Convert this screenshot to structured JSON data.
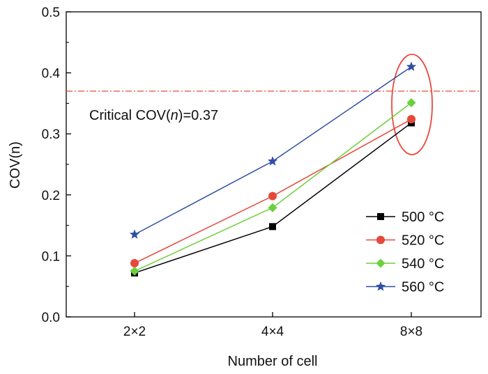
{
  "chart_data": {
    "type": "line",
    "xlabel": "Number of cell",
    "ylabel": "COV(n)",
    "ylim": [
      0,
      0.5
    ],
    "yticks": [
      0.0,
      0.1,
      0.2,
      0.3,
      0.4,
      0.5
    ],
    "ytick_labels": [
      "0.0",
      "0.1",
      "0.2",
      "0.3",
      "0.4",
      "0.5"
    ],
    "categories": [
      "2×2",
      "4×4",
      "8×8"
    ],
    "series": [
      {
        "name": "500 °C",
        "color": "#000000",
        "marker": "square",
        "values": [
          0.072,
          0.148,
          0.318
        ]
      },
      {
        "name": "520 °C",
        "color": "#e8483a",
        "marker": "circle",
        "values": [
          0.088,
          0.198,
          0.324
        ]
      },
      {
        "name": "540 °C",
        "color": "#6ccf3c",
        "marker": "diamond",
        "values": [
          0.075,
          0.179,
          0.351
        ]
      },
      {
        "name": "560 °C",
        "color": "#2e4fa3",
        "marker": "star",
        "values": [
          0.135,
          0.255,
          0.41
        ]
      }
    ],
    "reference_line": {
      "value": 0.37,
      "color": "#e8483a",
      "style": "dash-dot"
    },
    "annotation": {
      "text_prefix": "Critical COV(",
      "text_var": "n",
      "text_suffix": ")=0.37"
    },
    "highlight_ellipse": {
      "category": "8×8",
      "color": "#e8483a"
    },
    "legend_position": "bottom-right",
    "grid": false
  }
}
